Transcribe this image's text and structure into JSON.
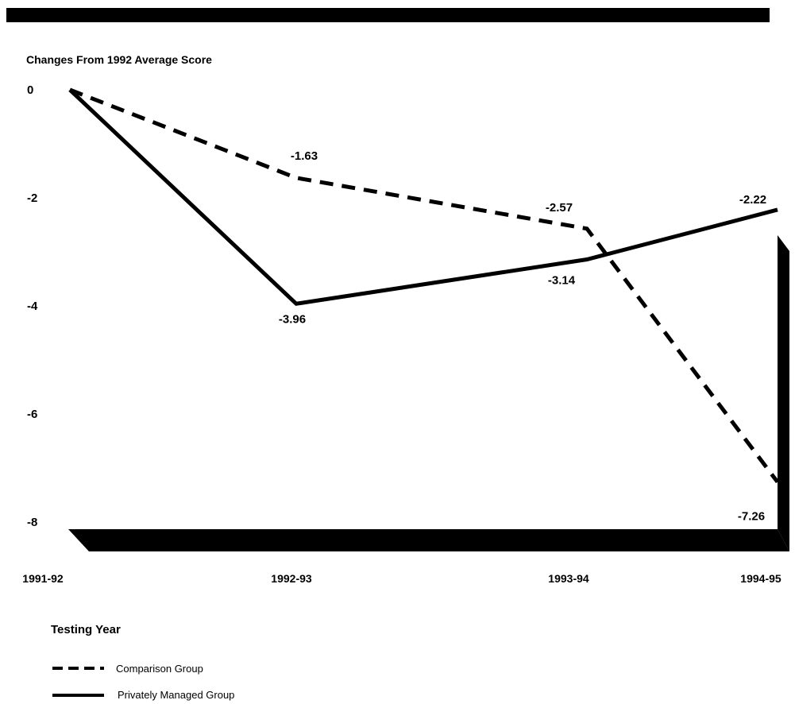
{
  "chart_data": {
    "type": "line",
    "title": "Changes From 1992 Average Score",
    "xlabel": "Testing Year",
    "ylabel": "",
    "categories": [
      "1991-92",
      "1992-93",
      "1993-94",
      "1994-95"
    ],
    "yticks": [
      "0",
      "-2",
      "-4",
      "-6",
      "-8"
    ],
    "ytick_values": [
      0,
      -2,
      -4,
      -6,
      -8
    ],
    "ylim": [
      -8,
      0
    ],
    "grid": false,
    "legend_position": "bottom-left",
    "series": [
      {
        "name": "Comparison Group",
        "style": "dashed",
        "color": "#000000",
        "values": [
          0,
          -1.63,
          -2.57,
          -7.26
        ],
        "labels": [
          "",
          "-1.63",
          "-2.57",
          "-7.26"
        ]
      },
      {
        "name": "Privately Managed Group",
        "style": "solid",
        "color": "#000000",
        "values": [
          0,
          -3.96,
          -3.14,
          -2.22
        ],
        "labels": [
          "",
          "-3.96",
          "-3.14",
          "-2.22"
        ]
      }
    ]
  }
}
